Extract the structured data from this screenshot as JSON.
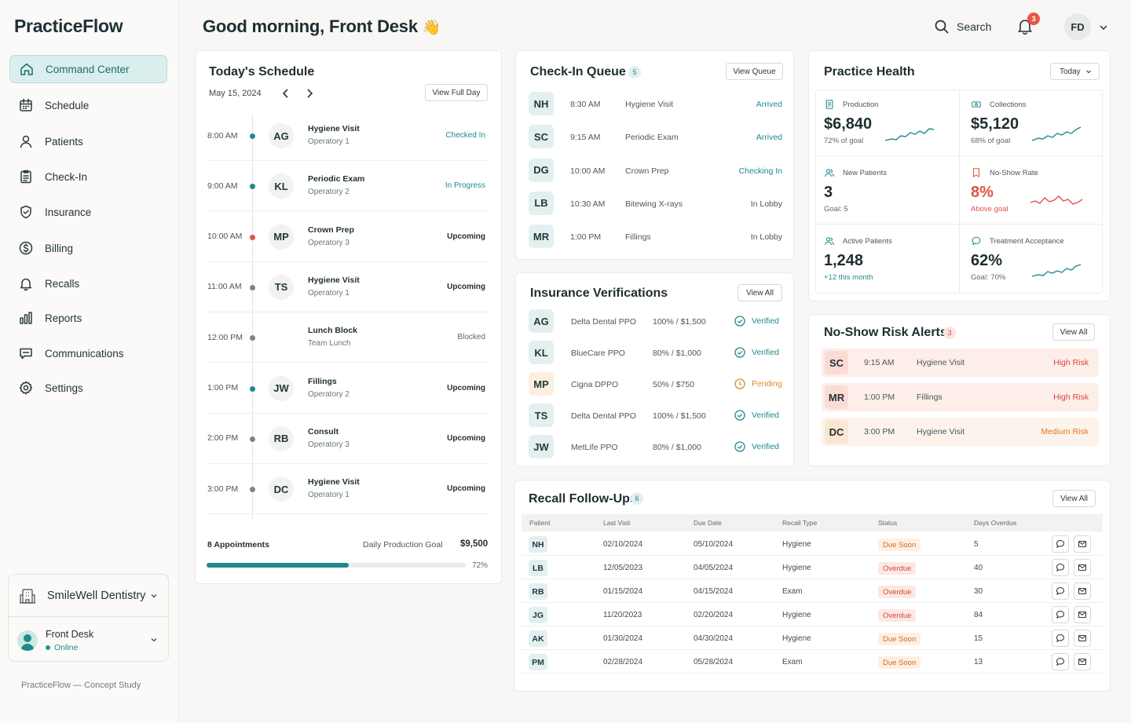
{
  "app": {
    "brand": "PracticeFlow",
    "footnote": "PracticeFlow — Concept Study"
  },
  "sidebar": {
    "items": [
      {
        "label": "Command Center",
        "icon": "home-icon",
        "active": true
      },
      {
        "label": "Schedule",
        "icon": "calendar-icon"
      },
      {
        "label": "Patients",
        "icon": "user-icon"
      },
      {
        "label": "Check-In",
        "icon": "clipboard-icon"
      },
      {
        "label": "Insurance",
        "icon": "shield-icon"
      },
      {
        "label": "Billing",
        "icon": "dollar-icon"
      },
      {
        "label": "Recalls",
        "icon": "bell-icon"
      },
      {
        "label": "Reports",
        "icon": "bar-chart-icon"
      },
      {
        "label": "Communications",
        "icon": "message-icon"
      },
      {
        "label": "Settings",
        "icon": "gear-icon"
      }
    ],
    "org_name": "SmileWell Dentistry",
    "user_name": "Front Desk",
    "user_status": "Online"
  },
  "header": {
    "greeting": "Good morning, Front Desk",
    "greeting_emoji": "👋",
    "search_label": "Search",
    "notification_count": "3",
    "avatar_initials": "FD"
  },
  "schedule": {
    "title": "Today's Schedule",
    "date": "May 15, 2024",
    "view_button": "View Full Day",
    "rows": [
      {
        "time": "8:00 AM",
        "initials": "AG",
        "title": "Hygiene Visit",
        "sub": "Operatory 1",
        "status": "Checked In",
        "dot": "#1e8a8a",
        "status_color": "#1f8a8c"
      },
      {
        "time": "9:00 AM",
        "initials": "KL",
        "title": "Periodic Exam",
        "sub": "Operatory 2",
        "status": "In Progress",
        "dot": "#1e8a8a",
        "status_color": "#1f8a8c"
      },
      {
        "time": "10:00 AM",
        "initials": "MP",
        "title": "Crown Prep",
        "sub": "Operatory 3",
        "status": "Upcoming",
        "dot": "#e2533f",
        "status_color": "#1f2d31"
      },
      {
        "time": "11:00 AM",
        "initials": "TS",
        "title": "Hygiene Visit",
        "sub": "Operatory 1",
        "status": "Upcoming",
        "dot": "#7b8587",
        "status_color": "#1f2d31"
      },
      {
        "time": "12:00 PM",
        "initials": "",
        "title": "Lunch Block",
        "sub": "Team Lunch",
        "status": "Blocked",
        "dot": "#7b8587",
        "status_color": "#5d696b"
      },
      {
        "time": "1:00 PM",
        "initials": "JW",
        "title": "Fillings",
        "sub": "Operatory 2",
        "status": "Upcoming",
        "dot": "#1e8a8a",
        "status_color": "#1f2d31"
      },
      {
        "time": "2:00 PM",
        "initials": "RB",
        "title": "Consult",
        "sub": "Operatory 3",
        "status": "Upcoming",
        "dot": "#7b8587",
        "status_color": "#1f2d31"
      },
      {
        "time": "3:00 PM",
        "initials": "DC",
        "title": "Hygiene Visit",
        "sub": "Operatory 1",
        "status": "Upcoming",
        "dot": "#7b8587",
        "status_color": "#1f2d31"
      }
    ],
    "footer_count": "8 Appointments",
    "goal_label": "Daily Production Goal",
    "goal_value": "$9,500",
    "progress_pct": "72%",
    "progress_fraction": 0.72
  },
  "queue": {
    "title": "Check-In Queue",
    "count": "5",
    "view_button": "View Queue",
    "rows": [
      {
        "initials": "NH",
        "time": "8:30 AM",
        "visit": "Hygiene Visit",
        "status": "Arrived",
        "status_color": "#1f8a8c"
      },
      {
        "initials": "SC",
        "time": "9:15 AM",
        "visit": "Periodic Exam",
        "status": "Arrived",
        "status_color": "#1f8a8c"
      },
      {
        "initials": "DG",
        "time": "10:00 AM",
        "visit": "Crown Prep",
        "status": "Checking In",
        "status_color": "#1f8a8c"
      },
      {
        "initials": "LB",
        "time": "10:30 AM",
        "visit": "Bitewing X-rays",
        "status": "In Lobby",
        "status_color": "#4a585b"
      },
      {
        "initials": "MR",
        "time": "1:00 PM",
        "visit": "Fillings",
        "status": "In Lobby",
        "status_color": "#4a585b"
      }
    ]
  },
  "insurance": {
    "title": "Insurance Verifications",
    "view_button": "View All",
    "rows": [
      {
        "initials": "AG",
        "plan": "Delta Dental PPO",
        "coverage": "100% / $1,500",
        "status": "Verified",
        "color": "#1f8a8c",
        "bg": "#e4f0f0"
      },
      {
        "initials": "KL",
        "plan": "BlueCare PPO",
        "coverage": "80% / $1,000",
        "status": "Verified",
        "color": "#1f8a8c",
        "bg": "#e4f0f0"
      },
      {
        "initials": "MP",
        "plan": "Cigna DPPO",
        "coverage": "50% / $750",
        "status": "Pending",
        "color": "#e08a2a",
        "bg": "#fcefe0"
      },
      {
        "initials": "TS",
        "plan": "Delta Dental PPO",
        "coverage": "100% / $1,500",
        "status": "Verified",
        "color": "#1f8a8c",
        "bg": "#e4f0f0"
      },
      {
        "initials": "JW",
        "plan": "MetLife PPO",
        "coverage": "80% / $1,000",
        "status": "Verified",
        "color": "#1f8a8c",
        "bg": "#e4f0f0"
      }
    ]
  },
  "health": {
    "title": "Practice Health",
    "period": "Today",
    "tiles": [
      {
        "label": "Production",
        "icon": "document-icon",
        "value": "$6,840",
        "sub": "72% of goal",
        "color": "#1f2d31",
        "sub_color": "#5d696b",
        "spark": "#1f8a8c"
      },
      {
        "label": "Collections",
        "icon": "cash-icon",
        "value": "$5,120",
        "sub": "68% of goal",
        "color": "#1f2d31",
        "sub_color": "#5d696b",
        "spark": "#1f8a8c"
      },
      {
        "label": "New Patients",
        "icon": "users-icon",
        "value": "3",
        "sub": "Goal: 5",
        "color": "#1f2d31",
        "sub_color": "#5d696b",
        "spark": ""
      },
      {
        "label": "No-Show Rate",
        "icon": "bookmark-icon",
        "value": "8%",
        "sub": "Above goal",
        "color": "#e0533f",
        "sub_color": "#e0533f",
        "spark": "#e0533f"
      },
      {
        "label": "Active Patients",
        "icon": "users-icon",
        "value": "1,248",
        "sub": "+12 this month",
        "color": "#1f2d31",
        "sub_color": "#1f8a8c",
        "spark": ""
      },
      {
        "label": "Treatment Acceptance",
        "icon": "chat-icon",
        "value": "62%",
        "sub": "Goal: 70%",
        "color": "#1f2d31",
        "sub_color": "#5d696b",
        "spark": "#1f8a8c"
      }
    ]
  },
  "noshow": {
    "title": "No-Show Risk Alerts",
    "count": "3",
    "view_button": "View All",
    "rows": [
      {
        "initials": "SC",
        "time": "9:15 AM",
        "visit": "Hygiene Visit",
        "risk": "High Risk",
        "bg": "#fdeeea",
        "init_bg": "#fadcd5",
        "color": "#d6473a"
      },
      {
        "initials": "MR",
        "time": "1:00 PM",
        "visit": "Fillings",
        "risk": "High Risk",
        "bg": "#fdeeea",
        "init_bg": "#fadcd5",
        "color": "#d6473a"
      },
      {
        "initials": "DC",
        "time": "3:00 PM",
        "visit": "Hygiene Visit",
        "risk": "Medium Risk",
        "bg": "#fdf3ea",
        "init_bg": "#fbe6d2",
        "color": "#d9782a"
      }
    ]
  },
  "recall": {
    "title": "Recall Follow-Ups",
    "count": "6",
    "view_button": "View All",
    "columns": [
      "Patient",
      "Last Visit",
      "Due Date",
      "Recall Type",
      "Status",
      "Days Overdue"
    ],
    "rows": [
      {
        "initials": "NH",
        "last": "02/10/2024",
        "due": "05/10/2024",
        "type": "Hygiene",
        "status": "Due Soon",
        "kind": "soon",
        "days": "5"
      },
      {
        "initials": "LB",
        "last": "12/05/2023",
        "due": "04/05/2024",
        "type": "Hygiene",
        "status": "Overdue",
        "kind": "over",
        "days": "40"
      },
      {
        "initials": "RB",
        "last": "01/15/2024",
        "due": "04/15/2024",
        "type": "Exam",
        "status": "Overdue",
        "kind": "over",
        "days": "30"
      },
      {
        "initials": "JG",
        "last": "11/20/2023",
        "due": "02/20/2024",
        "type": "Hygiene",
        "status": "Overdue",
        "kind": "over",
        "days": "84"
      },
      {
        "initials": "AK",
        "last": "01/30/2024",
        "due": "04/30/2024",
        "type": "Hygiene",
        "status": "Due Soon",
        "kind": "soon",
        "days": "15"
      },
      {
        "initials": "PM",
        "last": "02/28/2024",
        "due": "05/28/2024",
        "type": "Exam",
        "status": "Due Soon",
        "kind": "soon",
        "days": "13"
      }
    ]
  }
}
